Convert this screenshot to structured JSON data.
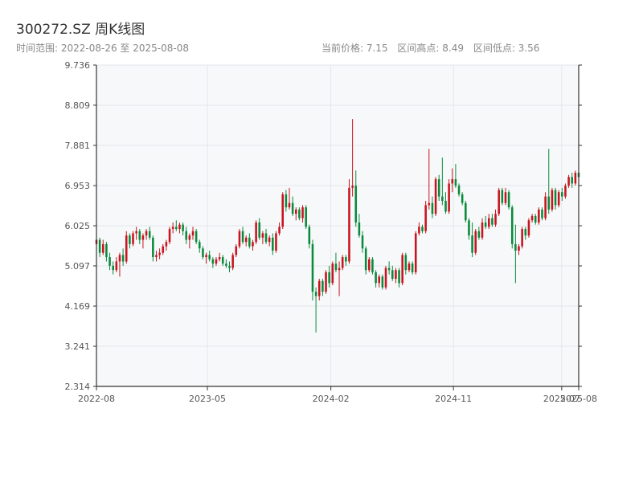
{
  "header": {
    "title": "300272.SZ 周K线图",
    "range_label": "时间范围: 2022-08-26 至 2025-08-08",
    "current_price": "当前价格: 7.15",
    "range_high": "区间高点: 8.49",
    "range_low": "区间低点: 3.56"
  },
  "colors": {
    "up": "#c8141e",
    "down": "#0a8a3c",
    "plot_bg": "#f7f8fa",
    "grid": "#e3e6ea",
    "axis": "#333333"
  },
  "chart_data": {
    "type": "candlestick",
    "title": "300272.SZ 周K线图",
    "xlabel": "",
    "ylabel": "",
    "ylim": [
      2.314,
      9.736
    ],
    "y_ticks": [
      "2.314",
      "3.241",
      "4.169",
      "5.097",
      "6.025",
      "6.953",
      "7.881",
      "8.809",
      "9.736"
    ],
    "x_range": [
      "2022-08-26",
      "2025-08-08"
    ],
    "x_ticks": [
      {
        "label": "2022-08",
        "date": "2022-08-26"
      },
      {
        "label": "2023-05",
        "date": "2023-05-01"
      },
      {
        "label": "2024-02",
        "date": "2024-02-01"
      },
      {
        "label": "2024-11",
        "date": "2024-11-01"
      },
      {
        "label": "2025-07",
        "date": "2025-07-01"
      },
      {
        "label": "2025-08",
        "date": "2025-08-08"
      }
    ],
    "grid": true,
    "series": [
      {
        "keys": [
          "open",
          "high",
          "low",
          "close"
        ],
        "values": [
          [
            5.6,
            5.8,
            5.5,
            5.7
          ],
          [
            5.7,
            5.75,
            5.3,
            5.4
          ],
          [
            5.4,
            5.7,
            5.35,
            5.6
          ],
          [
            5.6,
            5.65,
            5.2,
            5.3
          ],
          [
            5.3,
            5.4,
            5.0,
            5.1
          ],
          [
            5.1,
            5.2,
            4.9,
            5.0
          ],
          [
            5.0,
            5.3,
            4.95,
            5.2
          ],
          [
            5.2,
            5.4,
            4.85,
            5.35
          ],
          [
            5.35,
            5.5,
            5.1,
            5.2
          ],
          [
            5.2,
            5.9,
            5.15,
            5.8
          ],
          [
            5.8,
            5.85,
            5.5,
            5.6
          ],
          [
            5.6,
            5.9,
            5.55,
            5.85
          ],
          [
            5.85,
            6.0,
            5.7,
            5.9
          ],
          [
            5.9,
            5.95,
            5.6,
            5.7
          ],
          [
            5.7,
            5.85,
            5.5,
            5.8
          ],
          [
            5.8,
            5.95,
            5.7,
            5.9
          ],
          [
            5.9,
            6.0,
            5.7,
            5.75
          ],
          [
            5.75,
            5.8,
            5.2,
            5.3
          ],
          [
            5.3,
            5.45,
            5.2,
            5.35
          ],
          [
            5.35,
            5.5,
            5.25,
            5.4
          ],
          [
            5.4,
            5.6,
            5.35,
            5.55
          ],
          [
            5.55,
            5.7,
            5.45,
            5.65
          ],
          [
            5.65,
            6.0,
            5.6,
            5.95
          ],
          [
            5.95,
            6.1,
            5.85,
            6.0
          ],
          [
            6.0,
            6.15,
            5.9,
            5.95
          ],
          [
            5.95,
            6.1,
            5.85,
            6.05
          ],
          [
            6.05,
            6.1,
            5.8,
            5.9
          ],
          [
            5.9,
            6.0,
            5.6,
            5.7
          ],
          [
            5.7,
            5.85,
            5.5,
            5.8
          ],
          [
            5.8,
            6.0,
            5.7,
            5.9
          ],
          [
            5.9,
            5.95,
            5.6,
            5.65
          ],
          [
            5.65,
            5.7,
            5.4,
            5.5
          ],
          [
            5.5,
            5.55,
            5.25,
            5.3
          ],
          [
            5.3,
            5.4,
            5.15,
            5.35
          ],
          [
            5.35,
            5.45,
            5.2,
            5.25
          ],
          [
            5.25,
            5.3,
            5.05,
            5.15
          ],
          [
            5.15,
            5.3,
            5.1,
            5.25
          ],
          [
            5.25,
            5.4,
            5.2,
            5.3
          ],
          [
            5.3,
            5.35,
            5.1,
            5.15
          ],
          [
            5.15,
            5.25,
            5.05,
            5.1
          ],
          [
            5.1,
            5.2,
            4.95,
            5.05
          ],
          [
            5.05,
            5.4,
            5.0,
            5.35
          ],
          [
            5.35,
            5.6,
            5.3,
            5.55
          ],
          [
            5.55,
            5.95,
            5.5,
            5.9
          ],
          [
            5.9,
            6.0,
            5.6,
            5.65
          ],
          [
            5.65,
            5.8,
            5.55,
            5.75
          ],
          [
            5.75,
            5.85,
            5.5,
            5.55
          ],
          [
            5.55,
            5.7,
            5.45,
            5.65
          ],
          [
            5.65,
            6.15,
            5.6,
            6.1
          ],
          [
            6.1,
            6.2,
            5.7,
            5.75
          ],
          [
            5.75,
            5.9,
            5.6,
            5.85
          ],
          [
            5.85,
            5.95,
            5.6,
            5.65
          ],
          [
            5.65,
            5.8,
            5.55,
            5.75
          ],
          [
            5.75,
            5.85,
            5.35,
            5.45
          ],
          [
            5.45,
            5.9,
            5.4,
            5.85
          ],
          [
            5.85,
            6.1,
            5.8,
            6.0
          ],
          [
            6.0,
            6.8,
            5.95,
            6.75
          ],
          [
            6.75,
            6.85,
            6.35,
            6.45
          ],
          [
            6.45,
            6.9,
            6.4,
            6.55
          ],
          [
            6.55,
            6.7,
            6.25,
            6.3
          ],
          [
            6.3,
            6.45,
            6.15,
            6.4
          ],
          [
            6.4,
            6.45,
            6.15,
            6.2
          ],
          [
            6.2,
            6.5,
            6.1,
            6.45
          ],
          [
            6.45,
            6.5,
            5.95,
            6.0
          ],
          [
            6.0,
            6.05,
            5.5,
            5.6
          ],
          [
            5.6,
            5.7,
            4.3,
            4.5
          ],
          [
            4.5,
            4.6,
            3.56,
            4.4
          ],
          [
            4.4,
            4.8,
            4.3,
            4.75
          ],
          [
            4.75,
            4.8,
            4.4,
            4.5
          ],
          [
            4.5,
            5.0,
            4.45,
            4.95
          ],
          [
            4.95,
            5.1,
            4.6,
            4.7
          ],
          [
            4.7,
            5.2,
            4.65,
            5.15
          ],
          [
            5.15,
            5.4,
            4.95,
            5.0
          ],
          [
            5.0,
            5.2,
            4.4,
            5.05
          ],
          [
            5.05,
            5.35,
            5.0,
            5.3
          ],
          [
            5.3,
            5.35,
            5.1,
            5.2
          ],
          [
            5.2,
            7.1,
            5.15,
            6.9
          ],
          [
            6.9,
            8.49,
            6.7,
            6.95
          ],
          [
            6.95,
            7.3,
            6.0,
            6.1
          ],
          [
            6.1,
            6.3,
            5.75,
            5.8
          ],
          [
            5.8,
            5.9,
            5.4,
            5.5
          ],
          [
            5.5,
            5.55,
            4.9,
            5.0
          ],
          [
            5.0,
            5.3,
            4.95,
            5.25
          ],
          [
            5.25,
            5.3,
            4.9,
            4.95
          ],
          [
            4.95,
            5.0,
            4.6,
            4.7
          ],
          [
            4.7,
            4.9,
            4.6,
            4.85
          ],
          [
            4.85,
            4.9,
            4.55,
            4.6
          ],
          [
            4.6,
            5.1,
            4.55,
            5.05
          ],
          [
            5.05,
            5.2,
            4.9,
            5.0
          ],
          [
            5.0,
            5.1,
            4.75,
            4.8
          ],
          [
            4.8,
            5.05,
            4.7,
            5.0
          ],
          [
            5.0,
            5.05,
            4.6,
            4.7
          ],
          [
            4.7,
            5.4,
            4.65,
            5.35
          ],
          [
            5.35,
            5.4,
            4.9,
            5.0
          ],
          [
            5.0,
            5.2,
            4.95,
            5.15
          ],
          [
            5.15,
            5.2,
            4.9,
            4.95
          ],
          [
            4.95,
            5.9,
            4.9,
            5.85
          ],
          [
            5.85,
            6.1,
            5.8,
            6.0
          ],
          [
            6.0,
            6.05,
            5.85,
            5.9
          ],
          [
            5.9,
            6.6,
            5.85,
            6.5
          ],
          [
            6.5,
            7.8,
            6.4,
            6.55
          ],
          [
            6.55,
            6.7,
            6.2,
            6.3
          ],
          [
            6.3,
            7.15,
            6.25,
            7.1
          ],
          [
            7.1,
            7.2,
            6.6,
            6.7
          ],
          [
            6.7,
            7.6,
            6.5,
            6.6
          ],
          [
            6.6,
            6.8,
            6.3,
            6.35
          ],
          [
            6.35,
            7.1,
            6.3,
            7.0
          ],
          [
            7.0,
            7.35,
            6.8,
            7.1
          ],
          [
            7.1,
            7.45,
            6.9,
            6.95
          ],
          [
            6.95,
            7.0,
            6.7,
            6.75
          ],
          [
            6.75,
            6.8,
            6.5,
            6.55
          ],
          [
            6.55,
            6.6,
            6.1,
            6.15
          ],
          [
            6.15,
            6.2,
            5.7,
            5.8
          ],
          [
            5.8,
            6.1,
            5.3,
            5.4
          ],
          [
            5.4,
            5.95,
            5.35,
            5.9
          ],
          [
            5.9,
            6.0,
            5.7,
            5.75
          ],
          [
            5.75,
            6.2,
            5.7,
            6.1
          ],
          [
            6.1,
            6.25,
            5.95,
            6.0
          ],
          [
            6.0,
            6.3,
            5.95,
            6.2
          ],
          [
            6.2,
            6.3,
            6.0,
            6.05
          ],
          [
            6.05,
            6.4,
            6.0,
            6.3
          ],
          [
            6.3,
            6.9,
            6.25,
            6.85
          ],
          [
            6.85,
            6.9,
            6.5,
            6.55
          ],
          [
            6.55,
            6.9,
            6.5,
            6.8
          ],
          [
            6.8,
            6.85,
            6.4,
            6.45
          ],
          [
            6.45,
            6.5,
            5.5,
            5.6
          ],
          [
            5.6,
            6.05,
            4.7,
            5.45
          ],
          [
            5.45,
            5.6,
            5.35,
            5.55
          ],
          [
            5.55,
            6.0,
            5.5,
            5.95
          ],
          [
            5.95,
            6.0,
            5.7,
            5.8
          ],
          [
            5.8,
            6.2,
            5.75,
            6.15
          ],
          [
            6.15,
            6.3,
            6.1,
            6.25
          ],
          [
            6.25,
            6.3,
            6.05,
            6.1
          ],
          [
            6.1,
            6.45,
            6.05,
            6.4
          ],
          [
            6.4,
            6.45,
            6.15,
            6.2
          ],
          [
            6.2,
            6.8,
            6.15,
            6.7
          ],
          [
            6.7,
            7.8,
            6.3,
            6.4
          ],
          [
            6.4,
            6.9,
            6.35,
            6.85
          ],
          [
            6.85,
            6.9,
            6.4,
            6.5
          ],
          [
            6.5,
            6.85,
            6.45,
            6.8
          ],
          [
            6.8,
            6.9,
            6.6,
            6.7
          ],
          [
            6.7,
            7.0,
            6.65,
            6.95
          ],
          [
            6.95,
            7.2,
            6.9,
            7.15
          ],
          [
            7.15,
            7.25,
            6.9,
            7.0
          ],
          [
            7.0,
            7.3,
            6.95,
            7.25
          ],
          [
            7.25,
            7.35,
            7.05,
            7.15
          ]
        ]
      }
    ]
  }
}
